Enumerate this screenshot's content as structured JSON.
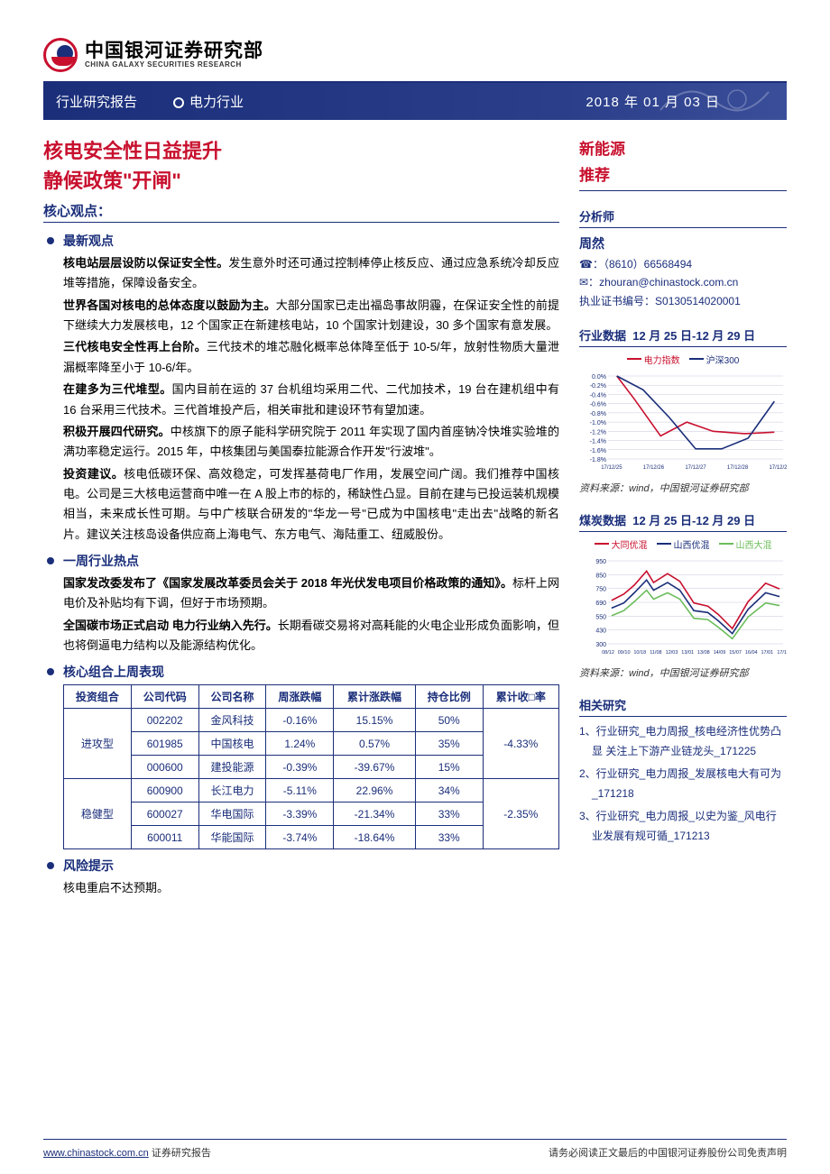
{
  "header": {
    "logo_cn": "中国银河证券研究部",
    "logo_en": "CHINA GALAXY SECURITIES RESEARCH",
    "banner_left": "行业研究报告",
    "banner_mid": "电力行业",
    "banner_date": "2018 年 01 月 03 日"
  },
  "title": {
    "line1": "核电安全性日益提升",
    "line2": "静候政策\"开闸\"",
    "core_label": "核心观点："
  },
  "sections": {
    "latest": {
      "head": "最新观点",
      "paras": [
        {
          "bold": "核电站层层设防以保证安全性。",
          "rest": "发生意外时还可通过控制棒停止核反应、通过应急系统冷却反应堆等措施，保障设备安全。"
        },
        {
          "bold": "世界各国对核电的总体态度以鼓励为主。",
          "rest": "大部分国家已走出福岛事故阴霾，在保证安全性的前提下继续大力发展核电，12 个国家正在新建核电站，10 个国家计划建设，30 多个国家有意发展。"
        },
        {
          "bold": "三代核电安全性再上台阶。",
          "rest": "三代技术的堆芯融化概率总体降至低于 10-5/年，放射性物质大量泄漏概率降至小于 10-6/年。"
        },
        {
          "bold": "在建多为三代堆型。",
          "rest": "国内目前在运的 37 台机组均采用二代、二代加技术，19 台在建机组中有 16 台采用三代技术。三代首堆投产后，相关审批和建设环节有望加速。"
        },
        {
          "bold": "积极开展四代研究。",
          "rest": "中核旗下的原子能科学研究院于 2011 年实现了国内首座钠冷快堆实验堆的满功率稳定运行。2015 年，中核集团与美国泰拉能源合作开发\"行波堆\"。"
        },
        {
          "bold": "投资建议。",
          "rest": "核电低碳环保、高效稳定，可发挥基荷电厂作用，发展空间广阔。我们推荐中国核电。公司是三大核电运营商中唯一在 A 股上市的标的，稀缺性凸显。目前在建与已投运装机规模相当，未来成长性可期。与中广核联合研发的\"华龙一号\"已成为中国核电\"走出去\"战略的新名片。建议关注核岛设备供应商上海电气、东方电气、海陆重工、纽威股份。"
        }
      ]
    },
    "weekly": {
      "head": "一周行业热点",
      "paras": [
        {
          "bold": "国家发改委发布了《国家发展改革委员会关于 2018 年光伏发电项目价格政策的通知》。",
          "rest": "标杆上网电价及补贴均有下调，但好于市场预期。"
        },
        {
          "bold": "全国碳市场正式启动 电力行业纳入先行。",
          "rest": "长期看碳交易将对高耗能的火电企业形成负面影响，但也将倒逼电力结构以及能源结构优化。"
        }
      ]
    },
    "portfolio": {
      "head": "核心组合上周表现"
    },
    "risk": {
      "head": "风险提示",
      "text": "核电重启不达预期。"
    }
  },
  "table": {
    "headers": [
      "投资组合",
      "公司代码",
      "公司名称",
      "周涨跌幅",
      "累计涨跌幅",
      "持仓比例",
      "累计收□率"
    ],
    "groups": [
      {
        "group_name": "进攻型",
        "cum_ret": "-4.33%",
        "rows": [
          {
            "code": "002202",
            "name": "金风科技",
            "week": "-0.16%",
            "cum": "15.15%",
            "weight": "50%"
          },
          {
            "code": "601985",
            "name": "中国核电",
            "week": "1.24%",
            "cum": "0.57%",
            "weight": "35%"
          },
          {
            "code": "000600",
            "name": "建投能源",
            "week": "-0.39%",
            "cum": "-39.67%",
            "weight": "15%"
          }
        ]
      },
      {
        "group_name": "稳健型",
        "cum_ret": "-2.35%",
        "rows": [
          {
            "code": "600900",
            "name": "长江电力",
            "week": "-5.11%",
            "cum": "22.96%",
            "weight": "34%"
          },
          {
            "code": "600027",
            "name": "华电国际",
            "week": "-3.39%",
            "cum": "-21.34%",
            "weight": "33%"
          },
          {
            "code": "600011",
            "name": "华能国际",
            "week": "-3.74%",
            "cum": "-18.64%",
            "weight": "33%"
          }
        ]
      }
    ]
  },
  "sidebar": {
    "category": "新能源",
    "rating": "推荐",
    "analyst_label": "分析师",
    "analyst": {
      "name": "周然",
      "phone_label": "☎：",
      "phone": "（8610）66568494",
      "email_label": "✉：",
      "email": "zhouran@chinastock.com.cn",
      "license_label": "执业证书编号：",
      "license": "S0130514020001"
    },
    "industry_chart": {
      "label": "行业数据",
      "dates": "12 月 25 日-12 月 29 日",
      "legend": [
        {
          "name": "电力指数",
          "color": "#c8102e"
        },
        {
          "name": "沪深300",
          "color": "#1a2e7a"
        }
      ],
      "type": "line",
      "x_labels": [
        "17/12/25",
        "17/12/26",
        "17/12/27",
        "17/12/28",
        "17/12/29"
      ],
      "x_positions": [
        0.02,
        0.26,
        0.5,
        0.74,
        0.98
      ],
      "y_ticks": [
        "0.0%",
        "-0.2%",
        "-0.4%",
        "-0.6%",
        "-0.8%",
        "-1.0%",
        "-1.2%",
        "-1.4%",
        "-1.6%",
        "-1.8%"
      ],
      "ylim": [
        -1.8,
        0.0
      ],
      "series": [
        {
          "color": "#c8102e",
          "points": [
            [
              0.05,
              0
            ],
            [
              0.15,
              -0.5
            ],
            [
              0.3,
              -1.3
            ],
            [
              0.45,
              -1.0
            ],
            [
              0.6,
              -1.2
            ],
            [
              0.78,
              -1.25
            ],
            [
              0.95,
              -1.22
            ]
          ]
        },
        {
          "color": "#1a2e7a",
          "points": [
            [
              0.05,
              0
            ],
            [
              0.2,
              -0.3
            ],
            [
              0.35,
              -0.9
            ],
            [
              0.5,
              -1.58
            ],
            [
              0.65,
              -1.58
            ],
            [
              0.8,
              -1.35
            ],
            [
              0.95,
              -0.55
            ]
          ]
        }
      ],
      "grid_color": "#c7c7de",
      "background": "#ffffff",
      "source": "资料来源：wind，中国银河证券研究部"
    },
    "coal_chart": {
      "label": "煤炭数据",
      "dates": "12 月 25 日-12 月 29 日",
      "legend": [
        {
          "name": "大同优混",
          "color": "#c8102e"
        },
        {
          "name": "山西优混",
          "color": "#1a2e7a"
        },
        {
          "name": "山西大混",
          "color": "#6bbd5a"
        }
      ],
      "type": "line",
      "x_labels": [
        "08/12",
        "09/10",
        "10/18",
        "11/08",
        "12/03",
        "13/01",
        "13/08",
        "14/09",
        "15/07",
        "16/04",
        "17/01",
        "17/11"
      ],
      "y_ticks": [
        "950",
        "850",
        "750",
        "690",
        "550",
        "430",
        "300"
      ],
      "ylim": [
        300,
        950
      ],
      "series": [
        {
          "color": "#c8102e",
          "points": [
            [
              0.02,
              640
            ],
            [
              0.09,
              690
            ],
            [
              0.15,
              760
            ],
            [
              0.22,
              870
            ],
            [
              0.26,
              780
            ],
            [
              0.34,
              850
            ],
            [
              0.41,
              790
            ],
            [
              0.49,
              620
            ],
            [
              0.57,
              595
            ],
            [
              0.63,
              530
            ],
            [
              0.71,
              420
            ],
            [
              0.8,
              630
            ],
            [
              0.9,
              775
            ],
            [
              0.98,
              730
            ]
          ]
        },
        {
          "color": "#1a2e7a",
          "points": [
            [
              0.02,
              580
            ],
            [
              0.09,
              620
            ],
            [
              0.15,
              700
            ],
            [
              0.22,
              800
            ],
            [
              0.26,
              720
            ],
            [
              0.34,
              780
            ],
            [
              0.41,
              720
            ],
            [
              0.49,
              560
            ],
            [
              0.57,
              545
            ],
            [
              0.63,
              480
            ],
            [
              0.71,
              380
            ],
            [
              0.8,
              570
            ],
            [
              0.9,
              700
            ],
            [
              0.98,
              670
            ]
          ]
        },
        {
          "color": "#6bbd5a",
          "points": [
            [
              0.02,
              520
            ],
            [
              0.09,
              560
            ],
            [
              0.15,
              630
            ],
            [
              0.22,
              720
            ],
            [
              0.26,
              650
            ],
            [
              0.34,
              700
            ],
            [
              0.41,
              650
            ],
            [
              0.49,
              500
            ],
            [
              0.57,
              490
            ],
            [
              0.63,
              430
            ],
            [
              0.71,
              340
            ],
            [
              0.8,
              510
            ],
            [
              0.9,
              620
            ],
            [
              0.98,
              600
            ]
          ]
        }
      ],
      "grid_color": "#c7c7de",
      "background": "#ffffff",
      "source": "资料来源：wind，中国银河证券研究部"
    },
    "research": {
      "label": "相关研究",
      "items": [
        "1、行业研究_电力周报_核电经济性优势凸显 关注上下游产业链龙头_171225",
        "2、行业研究_电力周报_发展核电大有可为_171218",
        "3、行业研究_电力周报_以史为鉴_风电行业发展有规可循_171213"
      ]
    }
  },
  "footer": {
    "url": "www.chinastock.com.cn",
    "label": "证券研究报告",
    "disclaimer": "请务必阅读正文最后的中国银河证券股份公司免责声明"
  }
}
